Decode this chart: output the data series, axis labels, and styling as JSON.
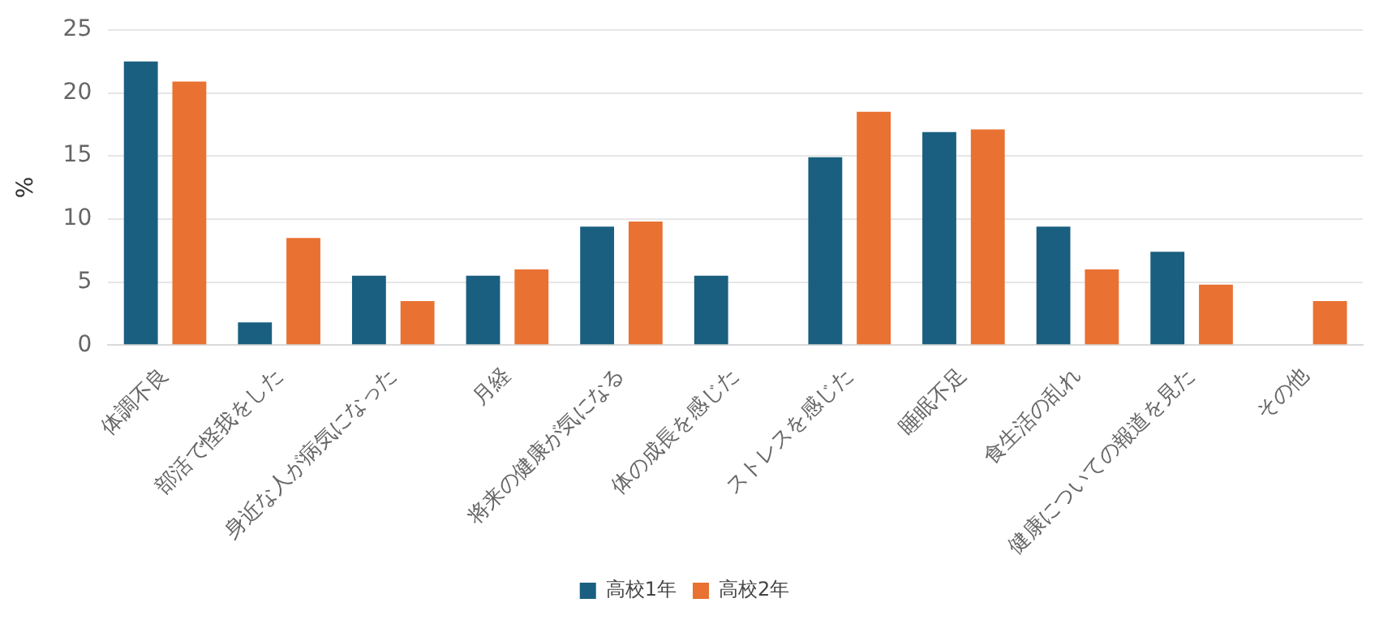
{
  "chart_data": {
    "type": "bar",
    "ylabel": "%",
    "categories": [
      "体調不良",
      "部活で怪我をした",
      "身近な人が病気になった",
      "月経",
      "将来の健康が気になる",
      "体の成長を感じた",
      "ストレスを感じた",
      "睡眠不足",
      "食生活の乱れ",
      "健康についての報道を見た",
      "その他"
    ],
    "series": [
      {
        "name": "高校1年",
        "color": "#1a5f80",
        "values": [
          22.5,
          1.8,
          5.5,
          5.5,
          9.4,
          5.5,
          14.9,
          16.9,
          9.4,
          7.4,
          0
        ]
      },
      {
        "name": "高校2年",
        "color": "#e97132",
        "values": [
          20.9,
          8.5,
          3.5,
          6.0,
          9.8,
          0,
          18.5,
          17.1,
          6.0,
          4.8,
          3.5
        ]
      }
    ],
    "ylim": [
      0,
      25
    ],
    "yticks": [
      0,
      5,
      10,
      15,
      20,
      25
    ],
    "grid": "y",
    "legend": "bottom"
  }
}
